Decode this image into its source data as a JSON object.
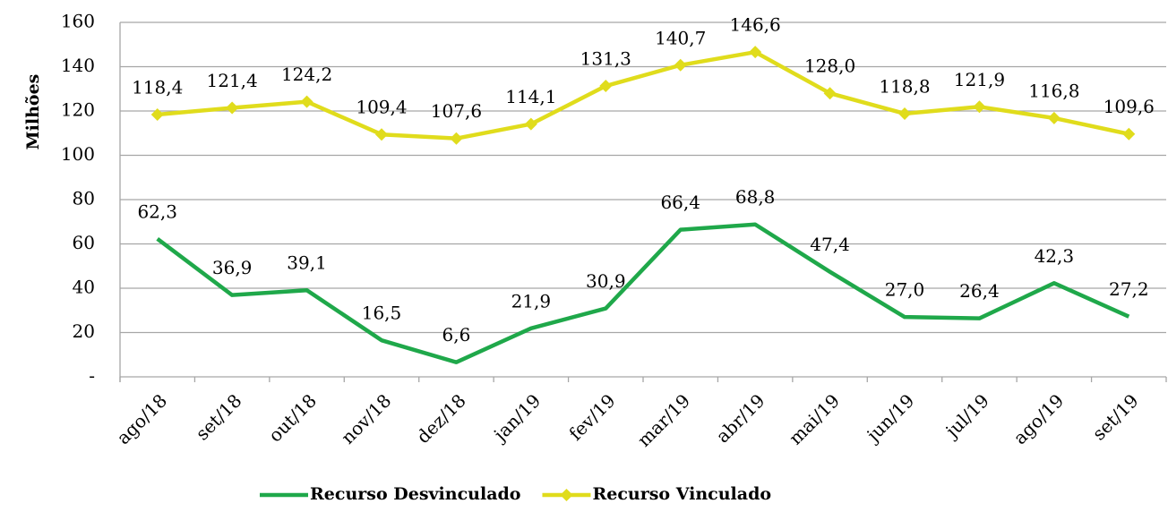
{
  "chart_data": {
    "type": "line",
    "y_label": "Milhões",
    "categories": [
      "ago/18",
      "set/18",
      "out/18",
      "nov/18",
      "dez/18",
      "jan/19",
      "fev/19",
      "mar/19",
      "abr/19",
      "mai/19",
      "jun/19",
      "jul/19",
      "ago/19",
      "set/19"
    ],
    "series": [
      {
        "name": "Recurso Desvinculado",
        "color": "#1fa84a",
        "marker": "none",
        "values": [
          62.3,
          36.9,
          39.1,
          16.5,
          6.6,
          21.9,
          30.9,
          66.4,
          68.8,
          47.4,
          27.0,
          26.4,
          42.3,
          27.2
        ],
        "value_labels": [
          "62,3",
          "36,9",
          "39,1",
          "16,5",
          "6,6",
          "21,9",
          "30,9",
          "66,4",
          "68,8",
          "47,4",
          "27,0",
          "26,4",
          "42,3",
          "27,2"
        ]
      },
      {
        "name": "Recurso Vinculado",
        "color": "#e0dc1c",
        "marker": "diamond",
        "values": [
          118.4,
          121.4,
          124.2,
          109.4,
          107.6,
          114.1,
          131.3,
          140.7,
          146.6,
          128.0,
          118.8,
          121.9,
          116.8,
          109.6
        ],
        "value_labels": [
          "118,4",
          "121,4",
          "124,2",
          "109,4",
          "107,6",
          "114,1",
          "131,3",
          "140,7",
          "146,6",
          "128,0",
          "118,8",
          "121,9",
          "116,8",
          "109,6"
        ]
      }
    ],
    "ylim": [
      0,
      160
    ],
    "yticks": [
      {
        "value": 0,
        "label": "-"
      },
      20,
      40,
      60,
      80,
      100,
      120,
      140,
      160
    ],
    "grid": true,
    "legend": "bottom"
  }
}
